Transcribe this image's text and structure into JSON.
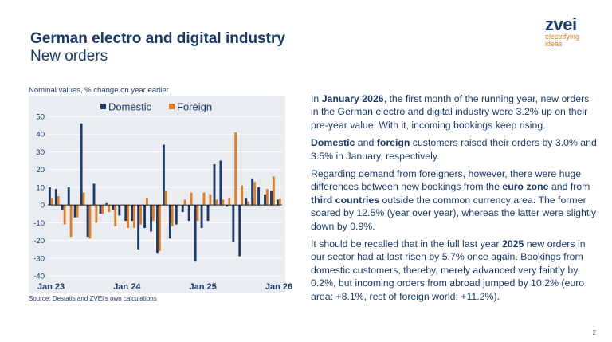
{
  "header": {
    "title": "German electro and digital industry",
    "subtitle": "New orders"
  },
  "logo": {
    "name": "zvei",
    "tagline1": "electrifying",
    "tagline2": "ideas"
  },
  "chart_note": "Nominal values, % change on year earlier",
  "source": "Source: Destatis and ZVEI's own calculations",
  "chart_data": {
    "type": "bar",
    "title": "",
    "ylim": [
      -40,
      50
    ],
    "yticks": [
      50,
      40,
      30,
      20,
      10,
      0,
      -10,
      -20,
      -30,
      -40
    ],
    "xtick_labels": [
      {
        "label": "Jan 23",
        "index": 0
      },
      {
        "label": "Jan 24",
        "index": 12
      },
      {
        "label": "Jan 25",
        "index": 24
      },
      {
        "label": "Jan 26",
        "index": 36
      }
    ],
    "legend_placement": "top",
    "grid": true,
    "categories": [
      "Jan 23",
      "Feb 23",
      "Mar 23",
      "Apr 23",
      "May 23",
      "Jun 23",
      "Jul 23",
      "Aug 23",
      "Sep 23",
      "Oct 23",
      "Nov 23",
      "Dec 23",
      "Jan 24",
      "Feb 24",
      "Mar 24",
      "Apr 24",
      "May 24",
      "Jun 24",
      "Jul 24",
      "Aug 24",
      "Sep 24",
      "Oct 24",
      "Nov 24",
      "Dec 24",
      "Jan 25",
      "Feb 25",
      "Mar 25",
      "Apr 25",
      "May 25",
      "Jun 25",
      "Jul 25",
      "Aug 25",
      "Sep 25",
      "Oct 25",
      "Nov 25",
      "Dec 25",
      "Jan 26"
    ],
    "series": [
      {
        "name": "Domestic",
        "color": "#1a3a6e",
        "values": [
          10,
          9,
          -3,
          10,
          -7,
          46,
          -18,
          12,
          -5,
          1,
          -3,
          -6,
          -9,
          -9,
          -25,
          -13,
          -15,
          -27,
          34,
          -19,
          -11,
          -4,
          -9,
          -32,
          -13,
          -9,
          23,
          25,
          -1,
          -21,
          -29,
          4,
          15,
          10,
          6,
          8,
          3
        ]
      },
      {
        "name": "Foreign",
        "color": "#e07e20",
        "values": [
          4,
          5,
          -11,
          -18,
          -7,
          7,
          -19,
          -10,
          -5,
          -4,
          -12,
          0,
          -13,
          -13,
          -11,
          4,
          -9,
          -26,
          8,
          -12,
          0,
          3,
          7,
          -9,
          7,
          6,
          3,
          3,
          4,
          41,
          11,
          2,
          13,
          0,
          9,
          16,
          3.5
        ]
      }
    ]
  },
  "body": {
    "p1": [
      {
        "t": "In "
      },
      {
        "t": "January 2026",
        "b": true
      },
      {
        "t": ", the first month of the running year, new orders in the German electro and digital industry were 3.2% up on their pre-year value. With it, incoming bookings keep rising."
      }
    ],
    "p2": [
      {
        "t": "Domestic",
        "b": true
      },
      {
        "t": " and "
      },
      {
        "t": "foreign",
        "b": true
      },
      {
        "t": " customers raised their orders by 3.0% and 3.5% in January, respectively."
      }
    ],
    "p3": [
      {
        "t": "Regarding demand from foreigners, however, there were huge differences between new bookings from the "
      },
      {
        "t": "euro zone",
        "b": true
      },
      {
        "t": " and from "
      },
      {
        "t": "third countries",
        "b": true
      },
      {
        "t": " outside the common currency area. The former soared by 12.5% (year over year), whereas the latter were slightly down by 0.9%."
      }
    ],
    "p4": [
      {
        "t": "It should be recalled that in the full last year "
      },
      {
        "t": "2025",
        "b": true
      },
      {
        "t": " new orders in our sector had at last risen by 5.7% once again. Bookings from domestic customers, thereby, merely advanced very faintly by 0.2%, but incoming orders from abroad jumped by 10.2% (euro area: +8.1%, rest of foreign world: +11.2%)."
      }
    ]
  },
  "page_number": "2"
}
